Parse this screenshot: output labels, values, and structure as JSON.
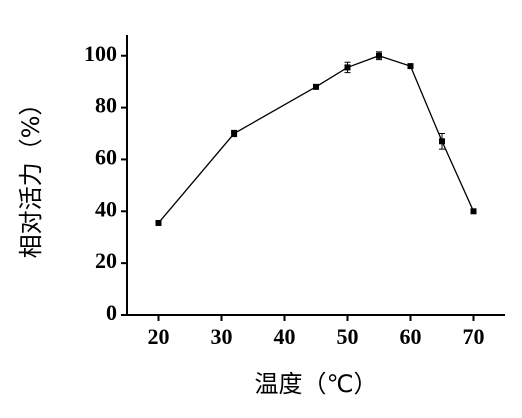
{
  "chart_data": {
    "type": "line",
    "x_label": "温度（℃）",
    "y_label": "相对活力（%）",
    "x": [
      20,
      32,
      45,
      50,
      55,
      60,
      65,
      70
    ],
    "values": [
      35.5,
      70,
      88,
      95.5,
      100,
      96,
      67,
      40
    ],
    "errors": [
      0.5,
      1.2,
      0.8,
      2,
      1.5,
      0.6,
      3,
      0.5
    ],
    "color": "#000000",
    "xlim": [
      15,
      75
    ],
    "ylim": [
      0,
      108
    ],
    "xticks": [
      20,
      30,
      40,
      50,
      60,
      70
    ],
    "yticks": [
      0,
      20,
      40,
      60,
      80,
      100
    ]
  }
}
